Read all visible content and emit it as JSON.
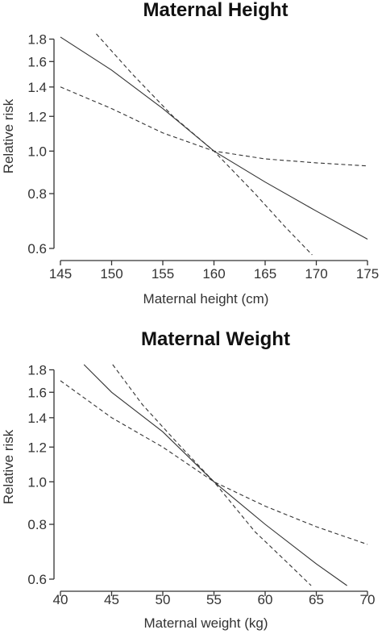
{
  "chart_data": [
    {
      "type": "line",
      "title": "Maternal Height",
      "xlabel": "Maternal height (cm)",
      "ylabel": "Relative risk",
      "xlim": [
        145,
        175
      ],
      "ylim": [
        0.58,
        1.85
      ],
      "log_y": true,
      "xticks": [
        145,
        150,
        155,
        160,
        165,
        170,
        175
      ],
      "xtick_labels": [
        "145",
        "150",
        "155",
        "160",
        "165",
        "170",
        "175"
      ],
      "yticks": [
        0.6,
        0.8,
        1.0,
        1.2,
        1.4,
        1.6,
        1.8
      ],
      "ytick_labels": [
        "0.6",
        "0.8",
        "1.0",
        "1.2",
        "1.4",
        "1.6",
        "1.8"
      ],
      "series": [
        {
          "style": "solid",
          "x": [
            145,
            150,
            155,
            160,
            165,
            170,
            175
          ],
          "y": [
            1.82,
            1.53,
            1.25,
            1.0,
            0.85,
            0.73,
            0.63
          ]
        },
        {
          "style": "dashed",
          "x": [
            148.5,
            152,
            156,
            160,
            164,
            167,
            169.6
          ],
          "y": [
            1.85,
            1.5,
            1.2,
            1.0,
            0.8,
            0.67,
            0.58
          ]
        },
        {
          "style": "dashed",
          "x": [
            145,
            150,
            155,
            160,
            165,
            170,
            175
          ],
          "y": [
            1.4,
            1.25,
            1.1,
            1.0,
            0.96,
            0.94,
            0.925
          ]
        }
      ]
    },
    {
      "type": "line",
      "title": "Maternal Weight",
      "xlabel": "Maternal weight (kg)",
      "ylabel": "Relative risk",
      "xlim": [
        40,
        70
      ],
      "ylim": [
        0.58,
        1.85
      ],
      "log_y": true,
      "xticks": [
        40,
        45,
        50,
        55,
        60,
        65,
        70
      ],
      "xtick_labels": [
        "40",
        "45",
        "50",
        "55",
        "60",
        "65",
        "70"
      ],
      "yticks": [
        0.6,
        0.8,
        1.0,
        1.2,
        1.4,
        1.6,
        1.8
      ],
      "ytick_labels": [
        "0.6",
        "0.8",
        "1.0",
        "1.2",
        "1.4",
        "1.6",
        "1.8"
      ],
      "series": [
        {
          "style": "solid",
          "x": [
            42.3,
            45,
            50,
            55,
            60,
            65,
            68
          ],
          "y": [
            1.85,
            1.6,
            1.3,
            1.0,
            0.8,
            0.65,
            0.58
          ]
        },
        {
          "style": "dashed",
          "x": [
            45.1,
            48,
            51.5,
            55,
            59,
            62,
            64.5
          ],
          "y": [
            1.85,
            1.5,
            1.22,
            1.0,
            0.77,
            0.66,
            0.58
          ]
        },
        {
          "style": "dashed",
          "x": [
            40,
            45,
            50,
            55,
            60,
            65,
            70
          ],
          "y": [
            1.7,
            1.4,
            1.2,
            1.0,
            0.88,
            0.79,
            0.72
          ]
        }
      ]
    }
  ]
}
